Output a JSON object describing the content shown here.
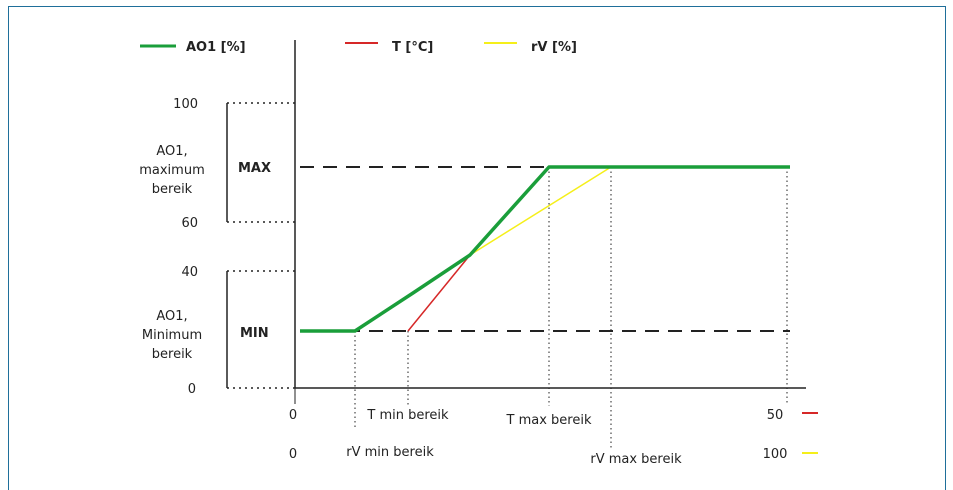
{
  "legend": [
    {
      "label": "AO1 [%]",
      "color": "#1a9e3a"
    },
    {
      "label": "T [°C]",
      "color": "#d62828"
    },
    {
      "label": "rV [%]",
      "color": "#f5ef1a"
    }
  ],
  "y_axis": {
    "ticks": [
      "100",
      "60",
      "40",
      "0"
    ],
    "level_max": "MAX",
    "level_min": "MIN",
    "range_max_label": [
      "AO1,",
      "maximum",
      "bereik"
    ],
    "range_min_label": [
      "AO1,",
      "Minimum",
      "bereik"
    ]
  },
  "x_axis": {
    "t_scale": {
      "start": "0",
      "end": "50"
    },
    "rv_scale": {
      "start": "0",
      "end": "100"
    },
    "markers": {
      "t_min": "T min bereik",
      "t_max": "T max bereik",
      "rv_min": "rV min bereik",
      "rv_max": "rV max bereik"
    }
  },
  "colors": {
    "ao1": "#1a9e3a",
    "t": "#d62828",
    "rv": "#f5ef1a",
    "axis": "#222222",
    "frame": "#1f6f9a"
  }
}
